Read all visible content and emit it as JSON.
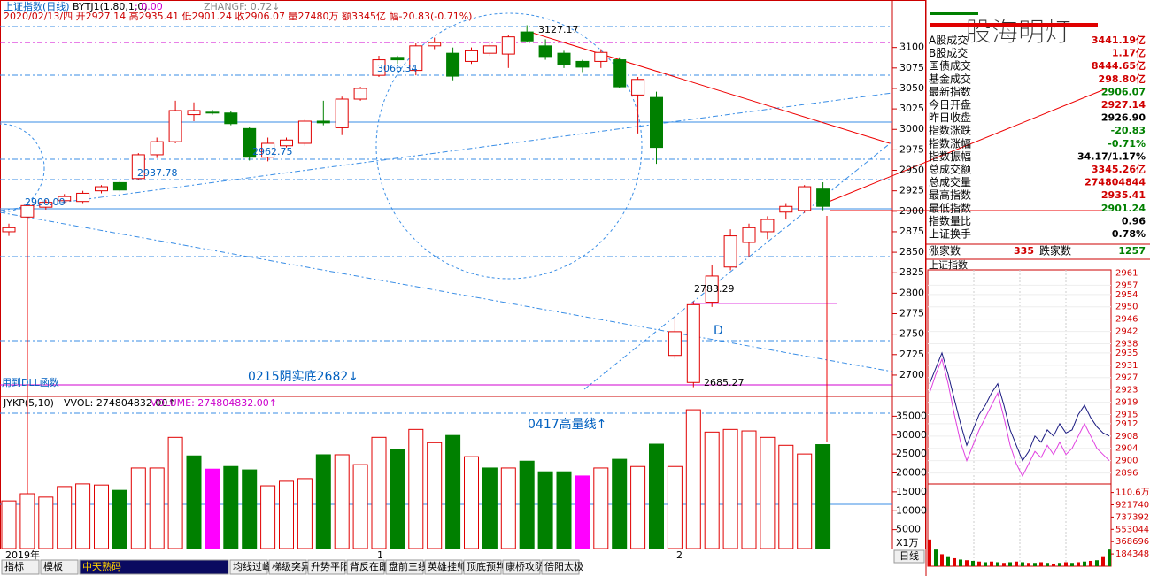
{
  "header": {
    "title": "上证指数(日线)",
    "ind": "BYTJ1(1.80,1,0)",
    "ind_val": ": 0.00",
    "zhangf": "ZHANGF: 0.72↓",
    "info": "2020/02/13/四 开2927.14 高2935.41 低2901.24 收2906.07 量27480万 额3345亿 幅-20.83(-0.71%)"
  },
  "price": {
    "ylim": [
      2674,
      3158
    ],
    "yticks": [
      2700,
      2725,
      2750,
      2775,
      2800,
      2825,
      2850,
      2875,
      2900,
      2925,
      2950,
      2975,
      3000,
      3025,
      3050,
      3075,
      3100
    ],
    "up_color": "#e00000",
    "down_color": "#008000",
    "candles": [
      {
        "open": 2875,
        "close": 2880,
        "high": 2885,
        "low": 2870
      },
      {
        "open": 2893,
        "close": 2907,
        "high": 2910,
        "low": 2890
      },
      {
        "open": 2905,
        "close": 2911,
        "high": 2914,
        "low": 2902
      },
      {
        "open": 2913,
        "close": 2918,
        "high": 2921,
        "low": 2910
      },
      {
        "open": 2912,
        "close": 2922,
        "high": 2925,
        "low": 2910
      },
      {
        "open": 2925,
        "close": 2930,
        "high": 2932,
        "low": 2922
      },
      {
        "open": 2935,
        "close": 2926,
        "high": 2937,
        "low": 2924
      },
      {
        "open": 2940,
        "close": 2969,
        "high": 2971,
        "low": 2938
      },
      {
        "open": 2969,
        "close": 2985,
        "high": 2990,
        "low": 2965
      },
      {
        "open": 2985,
        "close": 3023,
        "high": 3035,
        "low": 2983
      },
      {
        "open": 3018,
        "close": 3023,
        "high": 3033,
        "low": 3010
      },
      {
        "open": 3021,
        "close": 3020,
        "high": 3024,
        "low": 3018
      },
      {
        "open": 3020,
        "close": 3007,
        "high": 3022,
        "low": 3005
      },
      {
        "open": 3001,
        "close": 2966,
        "high": 3003,
        "low": 2962
      },
      {
        "open": 2966,
        "close": 2983,
        "high": 2990,
        "low": 2961
      },
      {
        "open": 2980,
        "close": 2987,
        "high": 2990,
        "low": 2978
      },
      {
        "open": 2983,
        "close": 3010,
        "high": 3012,
        "low": 2980
      },
      {
        "open": 3010,
        "close": 3008,
        "high": 3035,
        "low": 3005
      },
      {
        "open": 3002,
        "close": 3037,
        "high": 3040,
        "low": 2993
      },
      {
        "open": 3037,
        "close": 3050,
        "high": 3052,
        "low": 3035
      },
      {
        "open": 3066,
        "close": 3085,
        "high": 3090,
        "low": 3064
      },
      {
        "open": 3088,
        "close": 3085,
        "high": 3090,
        "low": 3080
      },
      {
        "open": 3072,
        "close": 3102,
        "high": 3105,
        "low": 3066
      },
      {
        "open": 3102,
        "close": 3106,
        "high": 3112,
        "low": 3098
      },
      {
        "open": 3093,
        "close": 3065,
        "high": 3100,
        "low": 3060
      },
      {
        "open": 3083,
        "close": 3096,
        "high": 3100,
        "low": 3080
      },
      {
        "open": 3093,
        "close": 3102,
        "high": 3108,
        "low": 3090
      },
      {
        "open": 3092,
        "close": 3113,
        "high": 3115,
        "low": 3075
      },
      {
        "open": 3119,
        "close": 3108,
        "high": 3127.17,
        "low": 3106
      },
      {
        "open": 3102,
        "close": 3089,
        "high": 3110,
        "low": 3085
      },
      {
        "open": 3093,
        "close": 3079,
        "high": 3096,
        "low": 3075
      },
      {
        "open": 3083,
        "close": 3076,
        "high": 3085,
        "low": 3070
      },
      {
        "open": 3083,
        "close": 3094,
        "high": 3098,
        "low": 3075
      },
      {
        "open": 3085,
        "close": 3052,
        "high": 3088,
        "low": 3050
      },
      {
        "open": 3042,
        "close": 3061,
        "high": 3064,
        "low": 2995
      },
      {
        "open": 3039,
        "close": 2978,
        "high": 3046,
        "low": 2958
      },
      {
        "open": 2724,
        "close": 2753,
        "high": 2771,
        "low": 2720
      },
      {
        "open": 2691,
        "close": 2786,
        "high": 2790,
        "low": 2685.27
      },
      {
        "open": 2789,
        "close": 2821,
        "high": 2835,
        "low": 2783.29
      },
      {
        "open": 2832,
        "close": 2870,
        "high": 2878,
        "low": 2828
      },
      {
        "open": 2862,
        "close": 2880,
        "high": 2885,
        "low": 2845
      },
      {
        "open": 2875,
        "close": 2890,
        "high": 2894,
        "low": 2866
      },
      {
        "open": 2899,
        "close": 2906,
        "high": 2910,
        "low": 2890
      },
      {
        "open": 2901,
        "close": 2930,
        "high": 2932,
        "low": 2898
      },
      {
        "open": 2927.14,
        "close": 2906.07,
        "high": 2935.41,
        "low": 2901.24
      }
    ],
    "annotations": [
      "3127.17",
      "3066.34",
      "2937.78",
      "2962.75",
      "2900.00",
      "2783.29",
      "2685.27",
      "D",
      "0215阴实底2682↓",
      "用到DLL函数"
    ]
  },
  "volume": {
    "title": "JYKP(5,10)",
    "vvol": "VVOL: 274804832.00↑",
    "vol": "VOLUME: 274804832.00↑",
    "note": "0417高量线↑",
    "unit": "X1万",
    "ylim": [
      0,
      40000
    ],
    "yticks": [
      5000,
      10000,
      15000,
      20000,
      25000,
      30000,
      35000
    ],
    "values": [
      12600,
      14500,
      13600,
      16400,
      17100,
      16800,
      15400,
      21300,
      21300,
      29400,
      24500,
      21000,
      21700,
      20800,
      16600,
      17800,
      18500,
      24800,
      24800,
      22200,
      29400,
      26200,
      31500,
      28000,
      29900,
      24300,
      21300,
      21300,
      23100,
      20300,
      20300,
      19200,
      21300,
      23600,
      21700,
      27600,
      21700,
      36700,
      30800,
      31500,
      31100,
      29400,
      27300,
      25000,
      27480
    ],
    "colors": [
      "#e00000",
      "#e00000",
      "#e00000",
      "#e00000",
      "#e00000",
      "#e00000",
      "#008000",
      "#e00000",
      "#e00000",
      "#e00000",
      "#008000",
      "#ff00ff",
      "#008000",
      "#008000",
      "#e00000",
      "#e00000",
      "#e00000",
      "#008000",
      "#e00000",
      "#e00000",
      "#e00000",
      "#008000",
      "#e00000",
      "#e00000",
      "#008000",
      "#e00000",
      "#008000",
      "#e00000",
      "#008000",
      "#008000",
      "#008000",
      "#ff00ff",
      "#e00000",
      "#008000",
      "#e00000",
      "#008000",
      "#e00000",
      "#e00000",
      "#e00000",
      "#e00000",
      "#e00000",
      "#e00000",
      "#e00000",
      "#e00000",
      "#008000"
    ]
  },
  "x_labels": [
    "2019年",
    "1",
    "2"
  ],
  "tabs": [
    "指标",
    "模板",
    "中天熟码",
    "均线过峰",
    "梯级突异",
    "升势平阳",
    "背反在即",
    "盘前三线",
    "英雄挂帅",
    "顶底预判",
    "康桥攻防",
    "倍阳太极"
  ],
  "period_button": "日线",
  "watermark": "股海明灯",
  "side": {
    "rows": [
      [
        "A股成交",
        "3441.19亿",
        "#d00000"
      ],
      [
        "B股成交",
        "1.17亿",
        "#d00000"
      ],
      [
        "国债成交",
        "8444.65亿",
        "#d00000"
      ],
      [
        "基金成交",
        "298.80亿",
        "#d00000"
      ],
      [
        "最新指数",
        "2906.07",
        "#008000"
      ],
      [
        "今日开盘",
        "2927.14",
        "#d00000"
      ],
      [
        "昨日收盘",
        "2926.90",
        "#000000"
      ],
      [
        "指数涨跌",
        "-20.83",
        "#008000"
      ],
      [
        "指数涨幅",
        "-0.71%",
        "#008000"
      ],
      [
        "指数振幅",
        "34.17/1.17%",
        "#000000"
      ],
      [
        "总成交额",
        "3345.26亿",
        "#d00000"
      ],
      [
        "总成交量",
        "274804844",
        "#d00000"
      ],
      [
        "最高指数",
        "2935.41",
        "#d00000"
      ],
      [
        "最低指数",
        "2901.24",
        "#008000"
      ],
      [
        "指数量比",
        "0.96",
        "#000000"
      ],
      [
        "上证换手",
        "0.78%",
        "#000000"
      ]
    ],
    "up_label": "涨家数",
    "up_count": "335",
    "down_label": "跌家数",
    "down_count": "1257"
  },
  "mini": {
    "title": "上证指数",
    "ylim": [
      2893,
      2962
    ],
    "yticks": [
      2961,
      2957,
      2954,
      2950,
      2946,
      2942,
      2938,
      2935,
      2931,
      2927,
      2923,
      2919,
      2915,
      2912,
      2908,
      2904,
      2900,
      2896
    ],
    "series": [
      {
        "color": "#1a1a80",
        "values": [
          2925,
          2930,
          2935,
          2928,
          2920,
          2912,
          2905,
          2910,
          2915,
          2918,
          2922,
          2925,
          2918,
          2910,
          2905,
          2900,
          2903,
          2908,
          2906,
          2910,
          2908,
          2912,
          2909,
          2910,
          2915,
          2918,
          2914,
          2911,
          2909,
          2908
        ]
      },
      {
        "color": "#e040e0",
        "values": [
          2922,
          2928,
          2933,
          2925,
          2915,
          2906,
          2900,
          2905,
          2910,
          2914,
          2918,
          2922,
          2914,
          2905,
          2899,
          2895,
          2899,
          2903,
          2901,
          2905,
          2902,
          2906,
          2902,
          2904,
          2908,
          2912,
          2908,
          2904,
          2902,
          2900
        ]
      }
    ],
    "vlim": [
      0,
      1220000
    ],
    "vticks": [
      {
        "value": 1106000,
        "label": "110.6万"
      },
      921740,
      737392,
      553044,
      368696,
      184348
    ],
    "volumes": [
      400000,
      250000,
      180000,
      150000,
      120000,
      100000,
      90000,
      80000,
      70000,
      60000,
      70000,
      60000,
      50000,
      60000,
      70000,
      60000,
      50000,
      50000,
      60000,
      50000,
      40000,
      50000,
      60000,
      50000,
      60000,
      70000,
      80000,
      90000,
      150000,
      250000
    ]
  }
}
